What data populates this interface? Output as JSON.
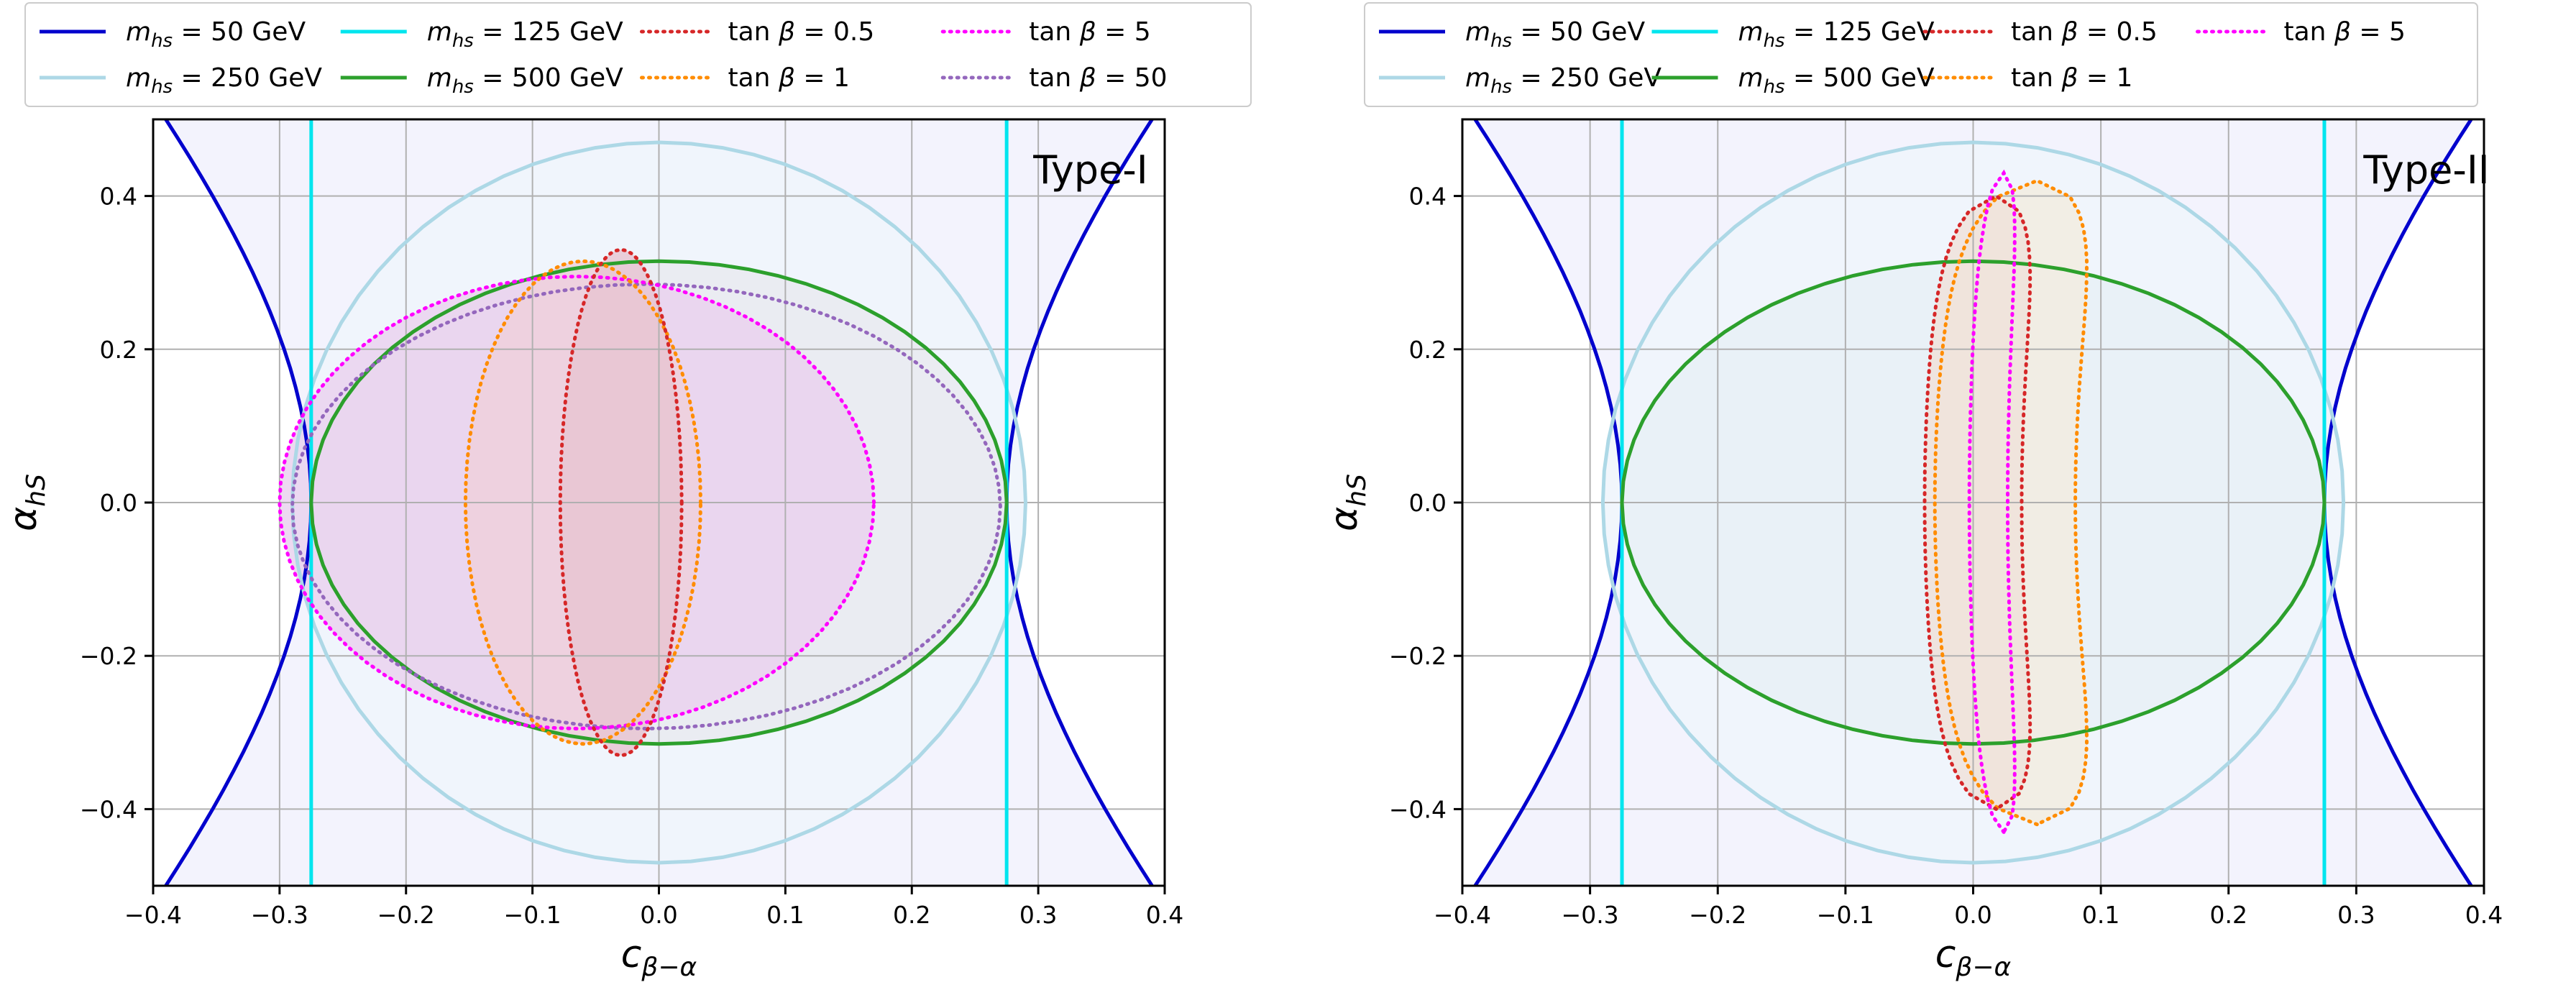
{
  "chart_data": [
    {
      "type": "line",
      "panel": "left",
      "title": "Type-I",
      "xlabel": "c_{β−α}",
      "ylabel": "α_{hS}",
      "xlim": [
        -0.4,
        0.4
      ],
      "ylim": [
        -0.5,
        0.5
      ],
      "xticks": [
        -0.4,
        -0.3,
        -0.2,
        -0.1,
        0.0,
        0.1,
        0.2,
        0.3,
        0.4
      ],
      "xtick_labels": [
        "−0.4",
        "−0.3",
        "−0.2",
        "−0.1",
        "0.0",
        "0.1",
        "0.2",
        "0.3",
        "0.4"
      ],
      "yticks": [
        -0.4,
        -0.2,
        0.0,
        0.2,
        0.4
      ],
      "ytick_labels": [
        "−0.4",
        "−0.2",
        "0.0",
        "0.2",
        "0.4"
      ],
      "grid": true,
      "legend": {
        "placement": "top",
        "entries": [
          {
            "label": "m_hs = 50 GeV",
            "color": "#0000cd",
            "style": "solid"
          },
          {
            "label": "m_hs = 250 GeV",
            "color": "#add8e6",
            "style": "solid"
          },
          {
            "label": "m_hs = 125 GeV",
            "color": "#00e5ee",
            "style": "solid"
          },
          {
            "label": "m_hs = 500 GeV",
            "color": "#2ca02c",
            "style": "solid"
          },
          {
            "label": "tan β = 0.5",
            "color": "#d62728",
            "style": "dotted"
          },
          {
            "label": "tan β = 1",
            "color": "#ff8c00",
            "style": "dotted"
          },
          {
            "label": "tan β = 5",
            "color": "#ff00ff",
            "style": "dotted"
          },
          {
            "label": "tan β = 50",
            "color": "#9467bd",
            "style": "dotted"
          }
        ]
      },
      "series": [
        {
          "name": "m_hs = 50 GeV",
          "shape": "hyperbola",
          "x_vertex": 0.275,
          "x_at_edge": 0.39,
          "edge_y": 0.5,
          "color": "#0000cd",
          "fill": "#f3f3fd"
        },
        {
          "name": "m_hs = 250 GeV",
          "shape": "ellipse",
          "cx": 0.0,
          "cy": 0.0,
          "rx": 0.29,
          "ry": 0.47,
          "color": "#add8e6",
          "fill": "#eef4fb"
        },
        {
          "name": "m_hs = 125 GeV",
          "shape": "vlines",
          "x": [
            -0.275,
            0.275
          ],
          "color": "#00e5ee"
        },
        {
          "name": "m_hs = 500 GeV",
          "shape": "ellipse",
          "cx": 0.0,
          "cy": 0.0,
          "rx": 0.275,
          "ry": 0.315,
          "color": "#2ca02c",
          "fill": "#e9eaf0"
        },
        {
          "name": "tan β = 50",
          "shape": "ellipse",
          "cx": -0.01,
          "cy": -0.005,
          "rx": 0.28,
          "ry": 0.29,
          "color": "#9467bd",
          "fill": "none"
        },
        {
          "name": "tan β = 5",
          "shape": "ellipse",
          "cx": -0.065,
          "cy": 0.0,
          "rx": 0.235,
          "ry": 0.295,
          "color": "#ff00ff",
          "fill": "#ead2ef"
        },
        {
          "name": "tan β = 1",
          "shape": "ellipse",
          "cx": -0.06,
          "cy": 0.0,
          "rx": 0.093,
          "ry": 0.315,
          "color": "#ff8c00",
          "fill": "#eed0dc"
        },
        {
          "name": "tan β = 0.5",
          "shape": "ellipse",
          "cx": -0.03,
          "cy": 0.0,
          "rx": 0.048,
          "ry": 0.33,
          "color": "#d62728",
          "fill": "#e8c6d2"
        }
      ]
    },
    {
      "type": "line",
      "panel": "right",
      "title": "Type-II",
      "xlabel": "c_{β−α}",
      "ylabel": "α_{hS}",
      "xlim": [
        -0.4,
        0.4
      ],
      "ylim": [
        -0.5,
        0.5
      ],
      "xticks": [
        -0.4,
        -0.3,
        -0.2,
        -0.1,
        0.0,
        0.1,
        0.2,
        0.3,
        0.4
      ],
      "xtick_labels": [
        "−0.4",
        "−0.3",
        "−0.2",
        "−0.1",
        "0.0",
        "0.1",
        "0.2",
        "0.3",
        "0.4"
      ],
      "yticks": [
        -0.4,
        -0.2,
        0.0,
        0.2,
        0.4
      ],
      "ytick_labels": [
        "−0.4",
        "−0.2",
        "0.0",
        "0.2",
        "0.4"
      ],
      "grid": true,
      "legend": {
        "placement": "top",
        "entries": [
          {
            "label": "m_hs = 50 GeV",
            "color": "#0000cd",
            "style": "solid"
          },
          {
            "label": "m_hs = 250 GeV",
            "color": "#add8e6",
            "style": "solid"
          },
          {
            "label": "m_hs = 125 GeV",
            "color": "#00e5ee",
            "style": "solid"
          },
          {
            "label": "m_hs = 500 GeV",
            "color": "#2ca02c",
            "style": "solid"
          },
          {
            "label": "tan β = 0.5",
            "color": "#d62728",
            "style": "dotted"
          },
          {
            "label": "tan β = 1",
            "color": "#ff8c00",
            "style": "dotted"
          },
          {
            "label": "tan β = 5",
            "color": "#ff00ff",
            "style": "dotted"
          }
        ]
      },
      "series": [
        {
          "name": "m_hs = 50 GeV",
          "shape": "hyperbola",
          "x_vertex": 0.275,
          "x_at_edge": 0.39,
          "edge_y": 0.5,
          "color": "#0000cd",
          "fill": "#f3f3fd"
        },
        {
          "name": "m_hs = 250 GeV",
          "shape": "ellipse",
          "cx": 0.0,
          "cy": 0.0,
          "rx": 0.29,
          "ry": 0.47,
          "color": "#add8e6",
          "fill": "#eef4fb"
        },
        {
          "name": "m_hs = 125 GeV",
          "shape": "vlines",
          "x": [
            -0.275,
            0.275
          ],
          "color": "#00e5ee"
        },
        {
          "name": "m_hs = 500 GeV",
          "shape": "ellipse",
          "cx": 0.0,
          "cy": 0.0,
          "rx": 0.275,
          "ry": 0.315,
          "color": "#2ca02c",
          "fill": "#e7f0f6"
        },
        {
          "name": "tan β = 1",
          "shape": "banana",
          "x_center": 0.025,
          "x_center_shift_at_edge": 0.025,
          "half_width": 0.055,
          "y_half": 0.42,
          "color": "#ff8c00",
          "fill": "#f2ece0"
        },
        {
          "name": "tan β = 0.5",
          "shape": "banana",
          "x_center": 0.0,
          "x_center_shift_at_edge": 0.018,
          "half_width": 0.038,
          "y_half": 0.4,
          "color": "#d62728",
          "fill": "#f0e2da"
        },
        {
          "name": "tan β = 5",
          "shape": "banana",
          "x_center": 0.012,
          "x_center_shift_at_edge": 0.012,
          "half_width": 0.015,
          "y_half": 0.43,
          "color": "#ff00ff",
          "fill": "none"
        }
      ]
    }
  ]
}
